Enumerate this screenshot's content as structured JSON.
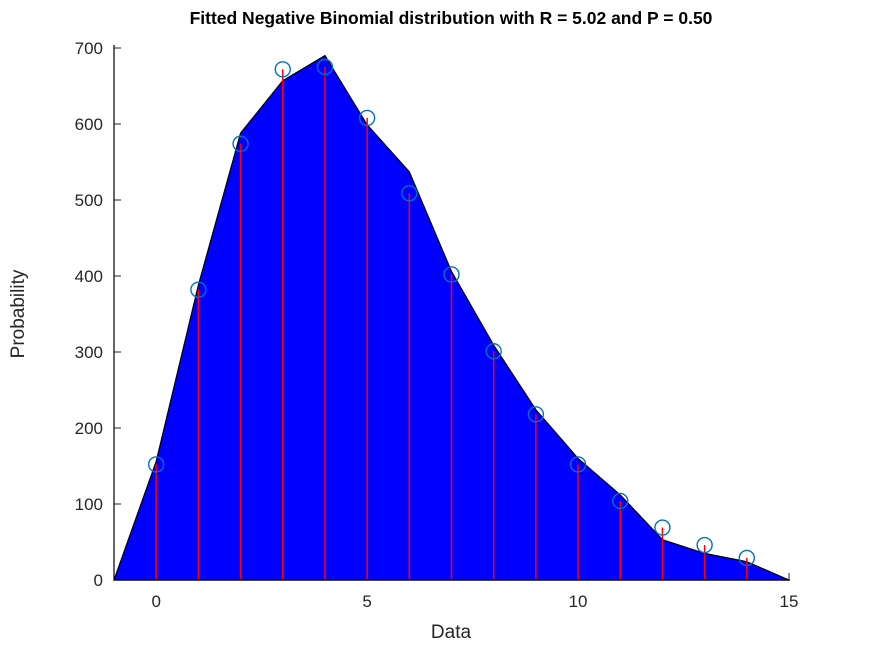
{
  "chart_data": {
    "type": "area+stem",
    "title": "Fitted Negative Binomial distribution with R = 5.02 and P = 0.50",
    "xlabel": "Data",
    "ylabel": "Probability",
    "xlim": [
      -1,
      15
    ],
    "ylim": [
      0,
      700
    ],
    "x_ticks": [
      0,
      5,
      10,
      15
    ],
    "y_ticks": [
      0,
      100,
      200,
      300,
      400,
      500,
      600,
      700
    ],
    "grid": false,
    "legend": null,
    "series": [
      {
        "name": "observed-data-area",
        "type": "area",
        "x": [
          -1,
          0,
          1,
          2,
          3,
          4,
          5,
          6,
          7,
          8,
          9,
          10,
          11,
          12,
          13,
          14,
          15
        ],
        "y": [
          0,
          156,
          388,
          588,
          657,
          690,
          599,
          537,
          406,
          309,
          224,
          160,
          112,
          53,
          35,
          24,
          0
        ],
        "fill_color": "#0000ff",
        "edge_color": "#000000"
      },
      {
        "name": "fitted-negative-binomial-stems",
        "type": "stem",
        "x": [
          0,
          1,
          2,
          3,
          4,
          5,
          6,
          7,
          8,
          9,
          10,
          11,
          12,
          13,
          14
        ],
        "y": [
          152,
          382,
          574,
          672,
          675,
          608,
          509,
          402,
          301,
          218,
          152,
          104,
          69,
          46,
          29
        ],
        "line_color": "#ff0000",
        "marker": "circle-open",
        "marker_color": "#0072bd"
      }
    ],
    "fit_params": {
      "R": "5.02",
      "P": "0.50"
    },
    "colors": {
      "axis": "#262626",
      "spine": "#000000",
      "title": "#000000",
      "background": "#ffffff"
    }
  }
}
